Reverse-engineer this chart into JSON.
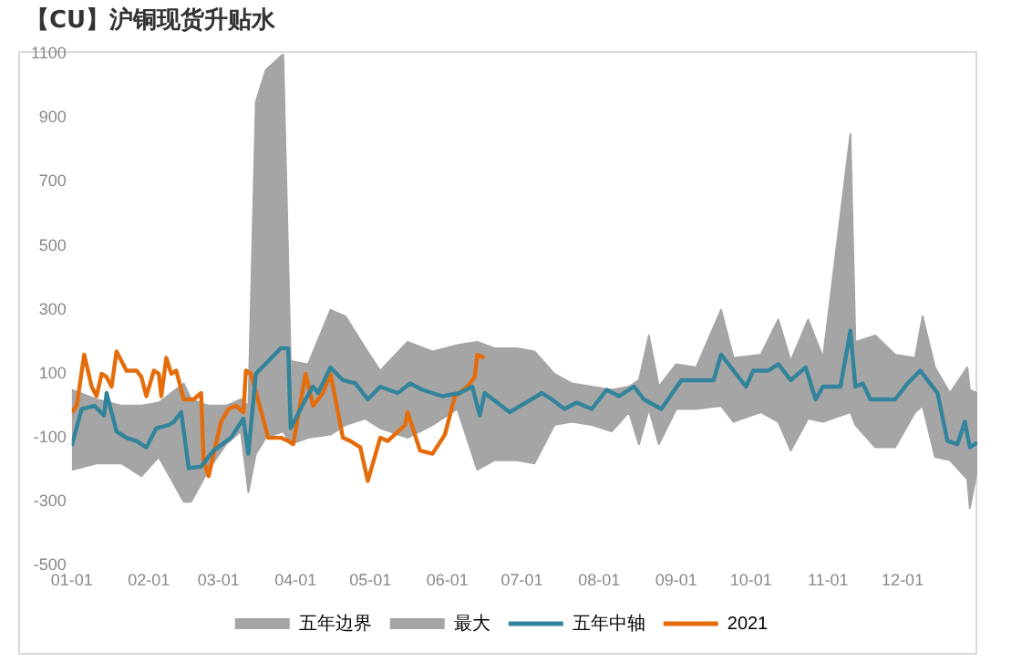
{
  "chart_data": {
    "type": "line",
    "title": "【CU】沪铜现货升贴水",
    "xlim": [
      "--01-01",
      "--12-31"
    ],
    "xticks": [
      {
        "value": "--01-01",
        "label": "01-01"
      },
      {
        "value": "--02-01",
        "label": "02-01"
      },
      {
        "value": "--03-01",
        "label": "03-01"
      },
      {
        "value": "--04-01",
        "label": "04-01"
      },
      {
        "value": "--05-01",
        "label": "05-01"
      },
      {
        "value": "--06-01",
        "label": "06-01"
      },
      {
        "value": "--07-01",
        "label": "07-01"
      },
      {
        "value": "--08-01",
        "label": "08-01"
      },
      {
        "value": "--09-01",
        "label": "09-01"
      },
      {
        "value": "--10-01",
        "label": "10-01"
      },
      {
        "value": "--11-01",
        "label": "11-01"
      },
      {
        "value": "--12-01",
        "label": "12-01"
      }
    ],
    "ylim": [
      -500,
      1100
    ],
    "yticks": [
      -500,
      -300,
      -100,
      100,
      300,
      500,
      700,
      900,
      1100
    ],
    "grid": false,
    "legend": "bottom",
    "marker": "none",
    "ref_lines": [
      {
        "axis": "y",
        "value": 0,
        "color": "#d9d9d9"
      }
    ],
    "series": [
      {
        "name": "五年边界",
        "type": "area",
        "color": "#a5a5a5",
        "x": [
          "--01-01",
          "--01-11",
          "--01-21",
          "--01-29",
          "--02-05",
          "--02-15",
          "--02-18",
          "--02-25",
          "--03-04",
          "--03-10",
          "--03-13",
          "--03-16",
          "--03-20",
          "--03-27",
          "--03-30",
          "--04-06",
          "--04-15",
          "--04-21",
          "--04-29",
          "--05-05",
          "--05-16",
          "--05-26",
          "--06-05",
          "--06-13",
          "--06-20",
          "--06-29",
          "--07-06",
          "--07-14",
          "--07-21",
          "--07-29",
          "--08-06",
          "--08-13",
          "--08-17",
          "--08-21",
          "--08-25",
          "--09-01",
          "--09-09",
          "--09-19",
          "--09-24",
          "--10-05",
          "--10-12",
          "--10-17",
          "--10-24",
          "--10-30",
          "--11-10",
          "--11-12",
          "--11-20",
          "--11-28",
          "--12-06",
          "--12-09",
          "--12-14",
          "--12-20",
          "--12-27",
          "--12-28",
          "--12-31"
        ],
        "values": [
          -200,
          -180,
          -180,
          -220,
          -160,
          -300,
          -300,
          -200,
          -120,
          -80,
          -270,
          -150,
          -100,
          -80,
          -120,
          -100,
          -90,
          -60,
          -40,
          -70,
          -100,
          -60,
          -10,
          -200,
          -170,
          -170,
          -180,
          -60,
          -50,
          -60,
          -80,
          -20,
          -120,
          -10,
          -120,
          -10,
          -10,
          0,
          -50,
          -20,
          -50,
          -140,
          -40,
          -50,
          -20,
          -60,
          -130,
          -130,
          -20,
          0,
          -160,
          -170,
          -230,
          -320,
          -200
        ]
      },
      {
        "name": "最大",
        "type": "area",
        "color": "#a5a5a5",
        "x": [
          "--01-01",
          "--01-11",
          "--01-21",
          "--01-29",
          "--02-05",
          "--02-15",
          "--02-18",
          "--02-25",
          "--03-04",
          "--03-10",
          "--03-13",
          "--03-16",
          "--03-20",
          "--03-27",
          "--03-30",
          "--04-06",
          "--04-15",
          "--04-21",
          "--04-29",
          "--05-05",
          "--05-16",
          "--05-26",
          "--06-05",
          "--06-13",
          "--06-20",
          "--06-29",
          "--07-06",
          "--07-14",
          "--07-21",
          "--07-29",
          "--08-06",
          "--08-13",
          "--08-17",
          "--08-21",
          "--08-25",
          "--09-01",
          "--09-09",
          "--09-19",
          "--09-24",
          "--10-05",
          "--10-12",
          "--10-17",
          "--10-24",
          "--10-30",
          "--11-10",
          "--11-12",
          "--11-20",
          "--11-28",
          "--12-06",
          "--12-09",
          "--12-14",
          "--12-20",
          "--12-27",
          "--12-28",
          "--12-31"
        ],
        "values": [
          50,
          20,
          0,
          0,
          10,
          70,
          20,
          0,
          0,
          20,
          0,
          950,
          1050,
          1100,
          140,
          130,
          300,
          280,
          180,
          110,
          200,
          170,
          190,
          200,
          180,
          180,
          170,
          100,
          70,
          60,
          50,
          60,
          80,
          220,
          60,
          130,
          120,
          300,
          150,
          160,
          270,
          140,
          270,
          150,
          850,
          200,
          220,
          160,
          150,
          280,
          120,
          40,
          120,
          50,
          40
        ]
      },
      {
        "name": "五年中轴",
        "color": "#31849b",
        "x": [
          "--01-01",
          "--01-05",
          "--01-10",
          "--01-14",
          "--01-15",
          "--01-19",
          "--01-23",
          "--01-27",
          "--01-31",
          "--02-04",
          "--02-09",
          "--02-11",
          "--02-14",
          "--02-17",
          "--02-22",
          "--02-27",
          "--03-06",
          "--03-11",
          "--03-13",
          "--03-16",
          "--03-21",
          "--03-26",
          "--03-29",
          "--03-30",
          "--04-05",
          "--04-08",
          "--04-10",
          "--04-15",
          "--04-20",
          "--04-25",
          "--04-30",
          "--05-05",
          "--05-12",
          "--05-17",
          "--05-22",
          "--05-30",
          "--06-06",
          "--06-11",
          "--06-14",
          "--06-16",
          "--06-21",
          "--06-26",
          "--07-09",
          "--07-13",
          "--07-18",
          "--07-23",
          "--07-29",
          "--08-04",
          "--08-09",
          "--08-15",
          "--08-19",
          "--08-26",
          "--09-03",
          "--09-10",
          "--09-16",
          "--09-19",
          "--09-24",
          "--09-29",
          "--10-02",
          "--10-08",
          "--10-12",
          "--10-17",
          "--10-23",
          "--10-27",
          "--10-30",
          "--11-06",
          "--11-10",
          "--11-12",
          "--11-15",
          "--11-18",
          "--11-28",
          "--12-03",
          "--12-08",
          "--12-15",
          "--12-19",
          "--12-23",
          "--12-26",
          "--12-28",
          "--12-31"
        ],
        "values": [
          -125,
          -10,
          0,
          -30,
          40,
          -80,
          -100,
          -110,
          -130,
          -70,
          -60,
          -50,
          -20,
          -195,
          -190,
          -140,
          -100,
          -40,
          -150,
          100,
          140,
          180,
          180,
          -70,
          20,
          60,
          40,
          120,
          80,
          70,
          20,
          60,
          40,
          70,
          50,
          30,
          40,
          60,
          -30,
          40,
          10,
          -20,
          40,
          20,
          -10,
          10,
          -10,
          50,
          30,
          60,
          20,
          -10,
          80,
          80,
          80,
          160,
          110,
          60,
          110,
          110,
          130,
          80,
          120,
          20,
          60,
          60,
          235,
          60,
          70,
          20,
          20,
          70,
          110,
          40,
          -110,
          -120,
          -50,
          -130,
          -115
        ]
      },
      {
        "name": "2021",
        "color": "#e46c0a",
        "x": [
          "--01-01",
          "--01-03",
          "--01-06",
          "--01-09",
          "--01-11",
          "--01-13",
          "--01-15",
          "--01-17",
          "--01-19",
          "--01-23",
          "--01-27",
          "--01-29",
          "--01-31",
          "--02-03",
          "--02-05",
          "--02-06",
          "--02-08",
          "--02-10",
          "--02-12",
          "--02-15",
          "--02-19",
          "--02-22",
          "--02-23",
          "--02-25",
          "--03-02",
          "--03-05",
          "--03-08",
          "--03-11",
          "--03-12",
          "--03-14",
          "--03-21",
          "--03-26",
          "--03-29",
          "--03-31",
          "--04-05",
          "--04-08",
          "--04-12",
          "--04-15",
          "--04-20",
          "--04-23",
          "--04-27",
          "--04-30",
          "--05-05",
          "--05-08",
          "--05-15",
          "--05-16",
          "--05-21",
          "--05-26",
          "--05-31",
          "--06-04",
          "--06-09",
          "--06-12",
          "--06-13",
          "--06-16"
        ],
        "values": [
          -20,
          0,
          160,
          60,
          30,
          100,
          90,
          60,
          170,
          110,
          110,
          90,
          30,
          110,
          100,
          30,
          150,
          100,
          110,
          20,
          20,
          40,
          -170,
          -220,
          -50,
          -10,
          0,
          -20,
          110,
          100,
          -100,
          -100,
          -110,
          -120,
          100,
          0,
          40,
          100,
          -100,
          -110,
          -130,
          -235,
          -100,
          -110,
          -60,
          -20,
          -140,
          -150,
          -90,
          30,
          60,
          90,
          160,
          150
        ]
      }
    ]
  }
}
